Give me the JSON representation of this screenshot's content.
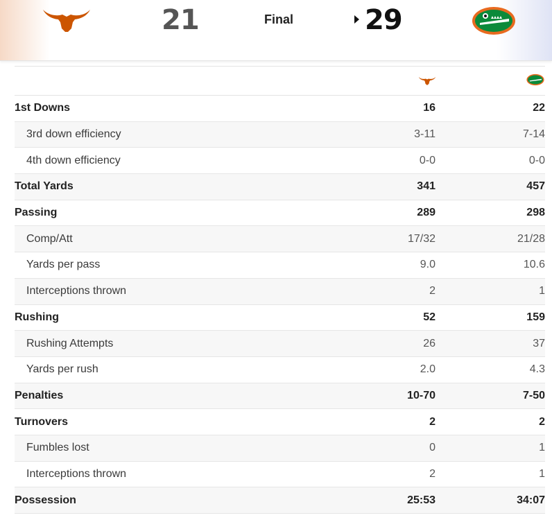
{
  "game": {
    "away_team": {
      "score": "21",
      "logo_icon": "longhorn-icon",
      "color": "#cc5500"
    },
    "home_team": {
      "score": "29",
      "logo_icon": "gator-icon",
      "color": "#0b8a3a"
    },
    "status": "Final"
  },
  "stats": {
    "rows": [
      {
        "label": "1st Downs",
        "away": "16",
        "home": "22",
        "level": "main"
      },
      {
        "label": "3rd down efficiency",
        "away": "3-11",
        "home": "7-14",
        "level": "sub"
      },
      {
        "label": "4th down efficiency",
        "away": "0-0",
        "home": "0-0",
        "level": "sub"
      },
      {
        "label": "Total Yards",
        "away": "341",
        "home": "457",
        "level": "main"
      },
      {
        "label": "Passing",
        "away": "289",
        "home": "298",
        "level": "main"
      },
      {
        "label": "Comp/Att",
        "away": "17/32",
        "home": "21/28",
        "level": "sub"
      },
      {
        "label": "Yards per pass",
        "away": "9.0",
        "home": "10.6",
        "level": "sub"
      },
      {
        "label": "Interceptions thrown",
        "away": "2",
        "home": "1",
        "level": "sub"
      },
      {
        "label": "Rushing",
        "away": "52",
        "home": "159",
        "level": "main"
      },
      {
        "label": "Rushing Attempts",
        "away": "26",
        "home": "37",
        "level": "sub"
      },
      {
        "label": "Yards per rush",
        "away": "2.0",
        "home": "4.3",
        "level": "sub"
      },
      {
        "label": "Penalties",
        "away": "10-70",
        "home": "7-50",
        "level": "main"
      },
      {
        "label": "Turnovers",
        "away": "2",
        "home": "2",
        "level": "main"
      },
      {
        "label": "Fumbles lost",
        "away": "0",
        "home": "1",
        "level": "sub"
      },
      {
        "label": "Interceptions thrown",
        "away": "2",
        "home": "1",
        "level": "sub"
      },
      {
        "label": "Possession",
        "away": "25:53",
        "home": "34:07",
        "level": "main"
      }
    ]
  }
}
